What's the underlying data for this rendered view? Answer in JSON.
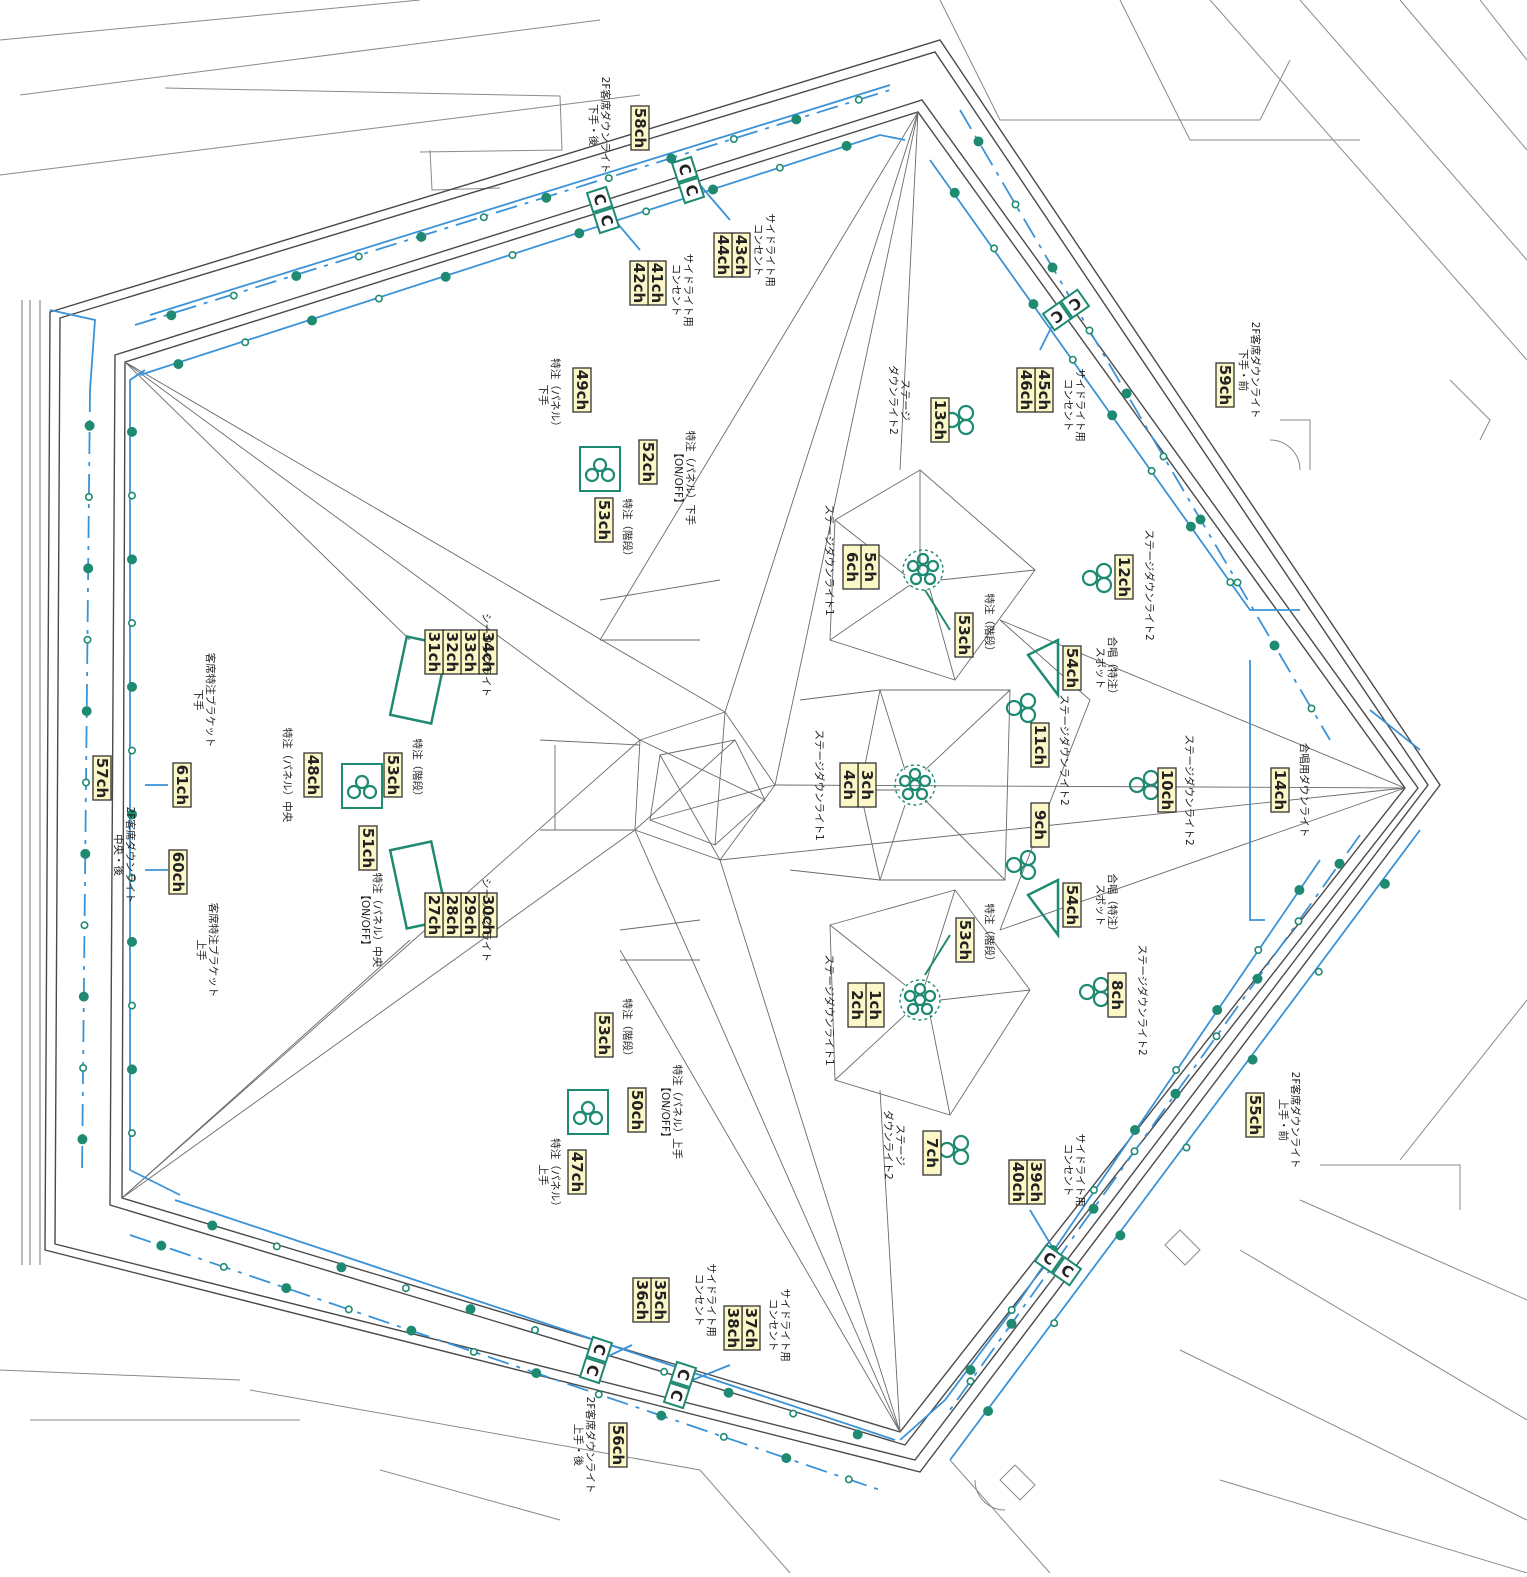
{
  "colors": {
    "wire": "#3a93d8",
    "fixture": "#1f8a72",
    "label_bg": "#fbf7c6",
    "label_border": "#333333",
    "line": "#555555",
    "faint": "#9a9a9a"
  },
  "outlet_glyph": "C",
  "channel_tags": [
    {
      "id": "58",
      "text": "58ch"
    },
    {
      "id": "43-44",
      "text": "43ch 44ch"
    },
    {
      "id": "41-42",
      "text": "41ch 42ch"
    },
    {
      "id": "45-46",
      "text": "45ch 46ch"
    },
    {
      "id": "59",
      "text": "59ch"
    },
    {
      "id": "13",
      "text": "13ch"
    },
    {
      "id": "49",
      "text": "49ch"
    },
    {
      "id": "52",
      "text": "52ch"
    },
    {
      "id": "53a",
      "text": "53ch"
    },
    {
      "id": "5-6",
      "text": "5ch 6ch"
    },
    {
      "id": "12",
      "text": "12ch"
    },
    {
      "id": "53b",
      "text": "53ch"
    },
    {
      "id": "54a",
      "text": "54ch"
    },
    {
      "id": "34-31",
      "text": "34ch 33ch 32ch 31ch"
    },
    {
      "id": "11",
      "text": "11ch"
    },
    {
      "id": "3-4",
      "text": "3ch 4ch"
    },
    {
      "id": "10",
      "text": "10ch"
    },
    {
      "id": "14",
      "text": "14ch"
    },
    {
      "id": "48",
      "text": "48ch"
    },
    {
      "id": "53c",
      "text": "53ch"
    },
    {
      "id": "61",
      "text": "61ch"
    },
    {
      "id": "57",
      "text": "57ch"
    },
    {
      "id": "51",
      "text": "51ch"
    },
    {
      "id": "9",
      "text": "9ch"
    },
    {
      "id": "54b",
      "text": "54ch"
    },
    {
      "id": "60",
      "text": "60ch"
    },
    {
      "id": "30-27",
      "text": "30ch 29ch 28ch 27ch"
    },
    {
      "id": "53d",
      "text": "53ch"
    },
    {
      "id": "8",
      "text": "8ch"
    },
    {
      "id": "1-2",
      "text": "1ch 2ch"
    },
    {
      "id": "53e",
      "text": "53ch"
    },
    {
      "id": "50",
      "text": "50ch"
    },
    {
      "id": "55",
      "text": "55ch"
    },
    {
      "id": "7",
      "text": "7ch"
    },
    {
      "id": "47",
      "text": "47ch"
    },
    {
      "id": "39-40",
      "text": "39ch 40ch"
    },
    {
      "id": "35-36",
      "text": "35ch 36ch"
    },
    {
      "id": "37-38",
      "text": "37ch 38ch"
    },
    {
      "id": "56",
      "text": "56ch"
    }
  ],
  "notes": {
    "n58": "2F客席ダウンライト 下手・後",
    "n43": "サイドライト用 コンセント",
    "n41": "サイドライト用 コンセント",
    "n45": "サイドライト用 コンセント",
    "n59": "2F客席ダウンライト 下手・前",
    "n13": "ステージ ダウンライト2",
    "n49": "特注（パネル） 下手",
    "n52": "特注（パネル）下手 【ON/OFF】",
    "n53a": "特注（階段）",
    "n56side": "ステージダウンライト1",
    "n12": "ステージダウンライト2",
    "n53b": "特注（階段）",
    "n54a": "合唱（特注） スポット",
    "nCeilA": "シーリングライト",
    "n11": "ステージダウンライト2",
    "n34side": "ステージダウンライト1",
    "n10": "ステージダウンライト2",
    "n14": "合唱用ダウンライト",
    "n61": "客席特注ブラケット 下手",
    "n48": "特注（パネル）中央",
    "n53c": "特注（階段）",
    "n57": "2F客席ダウンライト 中央・後",
    "n51": "特注（パネル）中央 【ON/OFF】",
    "n54b": "合唱（特注） スポット",
    "n60": "客席特注ブラケット 上手",
    "nCeilB": "シーリングライト",
    "n53d": "特注（階段）",
    "n8": "ステージダウンライト2",
    "n12side": "ステージダウンライト1",
    "n53e": "特注（階段）",
    "n50": "特注（パネル）上手 【ON/OFF】",
    "n55": "2F客席ダウンライト 上手・前",
    "n39": "サイドライト用 コンセント",
    "n7": "ステージ ダウンライト2",
    "n47": "特注（パネル） 上手",
    "n35": "サイドライト用 コンセント",
    "n37": "サイドライト用 コンセント",
    "n56": "2F客席ダウンライト 上手・後"
  }
}
